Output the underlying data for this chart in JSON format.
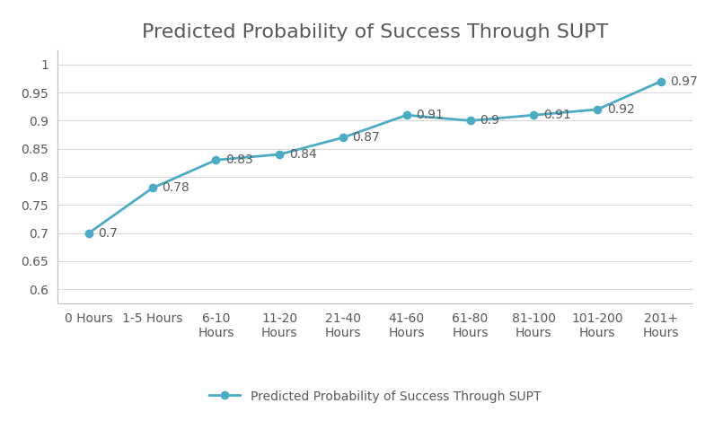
{
  "title": "Predicted Probability of Success Through SUPT",
  "categories": [
    "0 Hours",
    "1-5 Hours",
    "6-10\nHours",
    "11-20\nHours",
    "21-40\nHours",
    "41-60\nHours",
    "61-80\nHours",
    "81-100\nHours",
    "101-200\nHours",
    "201+\nHours"
  ],
  "values": [
    0.7,
    0.78,
    0.83,
    0.84,
    0.87,
    0.91,
    0.9,
    0.91,
    0.92,
    0.97
  ],
  "labels": [
    "0.7",
    "0.78",
    "0.83",
    "0.84",
    "0.87",
    "0.91",
    "0.9",
    "0.91",
    "0.92",
    "0.97"
  ],
  "ylim": [
    0.575,
    1.025
  ],
  "yticks": [
    0.6,
    0.65,
    0.7,
    0.75,
    0.8,
    0.85,
    0.9,
    0.95,
    1.0
  ],
  "line_color": "#4BACC6",
  "marker_color": "#4BACC6",
  "marker_style": "o",
  "marker_size": 6,
  "line_width": 2.0,
  "legend_label": "Predicted Probability of Success Through SUPT",
  "title_fontsize": 16,
  "label_fontsize": 10,
  "tick_fontsize": 10,
  "legend_fontsize": 10,
  "background_color": "#FFFFFF",
  "plot_bg_color": "#FFFFFF",
  "grid_color": "#D9D9D9",
  "text_color": "#595959",
  "border_color": "#BFBFBF"
}
